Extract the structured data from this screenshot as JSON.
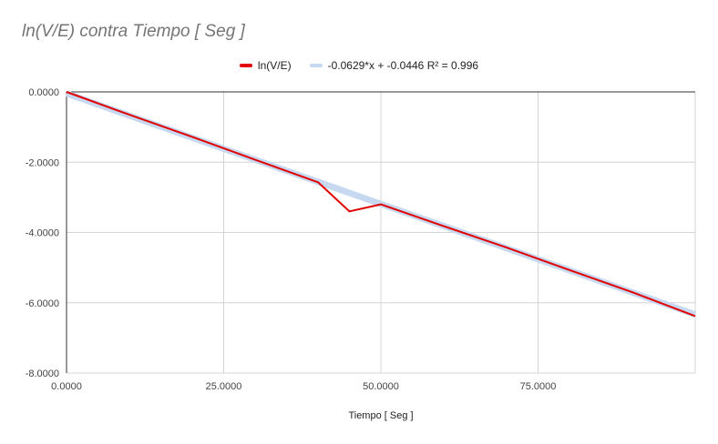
{
  "chart_data": {
    "type": "line",
    "title": "ln(V/E) contra Tiempo [ Seg ]",
    "xlabel": "Tiempo [ Seg ]",
    "ylabel": "",
    "xlim": [
      0,
      100
    ],
    "ylim": [
      -8,
      0
    ],
    "x_ticks": [
      "0.0000",
      "25.0000",
      "50.0000",
      "75.0000"
    ],
    "x_tick_values": [
      0,
      25,
      50,
      75
    ],
    "y_ticks": [
      "0.0000",
      "-2.0000",
      "-4.0000",
      "-6.0000",
      "-8.0000"
    ],
    "y_tick_values": [
      0,
      -2,
      -4,
      -6,
      -8
    ],
    "grid": true,
    "legend_position": "top-center",
    "series": [
      {
        "name": "ln(V/E)",
        "color": "#e00000",
        "x": [
          0,
          10,
          20,
          30,
          40,
          45,
          50,
          60,
          70,
          80,
          90,
          100
        ],
        "y": [
          0,
          -0.65,
          -1.28,
          -1.93,
          -2.57,
          -3.4,
          -3.2,
          -3.82,
          -4.43,
          -5.07,
          -5.7,
          -6.38
        ]
      },
      {
        "name": "-0.0629*x + -0.0446 R² = 0.996",
        "color": "#c6d9f1",
        "trendline": true,
        "slope": -0.0629,
        "intercept": -0.0446,
        "x": [
          0,
          100
        ],
        "y": [
          -0.0446,
          -6.3346
        ]
      }
    ]
  }
}
